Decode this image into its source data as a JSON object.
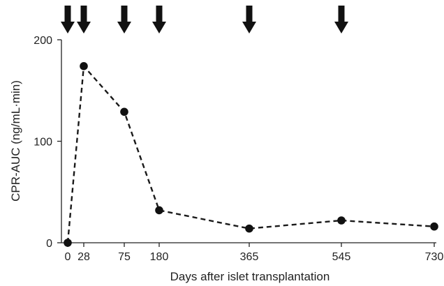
{
  "chart_data": {
    "type": "line",
    "title": "",
    "xlabel": "Days after islet transplantation",
    "ylabel": "CPR-AUC (ng/mL·min)",
    "x_tick_labels": [
      "0",
      "28",
      "75",
      "180",
      "365",
      "545",
      "730"
    ],
    "y_ticks": [
      0,
      100,
      200
    ],
    "ylim": [
      0,
      200
    ],
    "series": [
      {
        "points": [
          {
            "x_label": "0",
            "y": 0
          },
          {
            "x_label": "28",
            "y": 174
          },
          {
            "x_label": "75",
            "y": 129
          },
          {
            "x_label": "180",
            "y": 32
          },
          {
            "x_label": "365",
            "y": 14
          },
          {
            "x_label": "545",
            "y": 22
          },
          {
            "x_label": "730",
            "y": 16
          }
        ]
      }
    ],
    "arrow_markers": [
      "0",
      "28",
      "75",
      "180",
      "365",
      "545"
    ],
    "line_style": "dashed",
    "marker": "filled-circle",
    "grid": false,
    "legend": "none",
    "colors": {
      "line": "#1a1a1a",
      "marker": "#111111",
      "arrow": "#111111",
      "axis": "#222222"
    }
  }
}
